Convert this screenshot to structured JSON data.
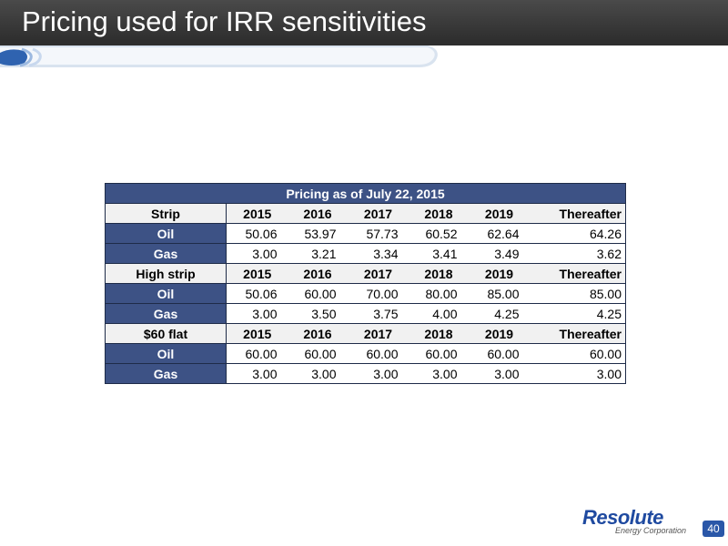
{
  "slide": {
    "title": "Pricing used for IRR sensitivities",
    "page_number": "40"
  },
  "table": {
    "caption": "Pricing as of July 22, 2015",
    "sections": [
      {
        "label": "Strip",
        "columns": [
          "2015",
          "2016",
          "2017",
          "2018",
          "2019",
          "Thereafter"
        ],
        "rows": [
          {
            "label": "Oil",
            "values": [
              "50.06",
              "53.97",
              "57.73",
              "60.52",
              "62.64",
              "64.26"
            ]
          },
          {
            "label": "Gas",
            "values": [
              "3.00",
              "3.21",
              "3.34",
              "3.41",
              "3.49",
              "3.62"
            ]
          }
        ]
      },
      {
        "label": "High strip",
        "columns": [
          "2015",
          "2016",
          "2017",
          "2018",
          "2019",
          "Thereafter"
        ],
        "rows": [
          {
            "label": "Oil",
            "values": [
              "50.06",
              "60.00",
              "70.00",
              "80.00",
              "85.00",
              "85.00"
            ]
          },
          {
            "label": "Gas",
            "values": [
              "3.00",
              "3.50",
              "3.75",
              "4.00",
              "4.25",
              "4.25"
            ]
          }
        ]
      },
      {
        "label": "$60 flat",
        "columns": [
          "2015",
          "2016",
          "2017",
          "2018",
          "2019",
          "Thereafter"
        ],
        "rows": [
          {
            "label": "Oil",
            "values": [
              "60.00",
              "60.00",
              "60.00",
              "60.00",
              "60.00",
              "60.00"
            ]
          },
          {
            "label": "Gas",
            "values": [
              "3.00",
              "3.00",
              "3.00",
              "3.00",
              "3.00",
              "3.00"
            ]
          }
        ]
      }
    ]
  },
  "logo": {
    "wordmark": "Resolute",
    "subtitle": "Energy Corporation"
  },
  "colors": {
    "title_bar": "#333333",
    "table_header_blue": "#3d5285",
    "accent_blue": "#2a57a8"
  }
}
